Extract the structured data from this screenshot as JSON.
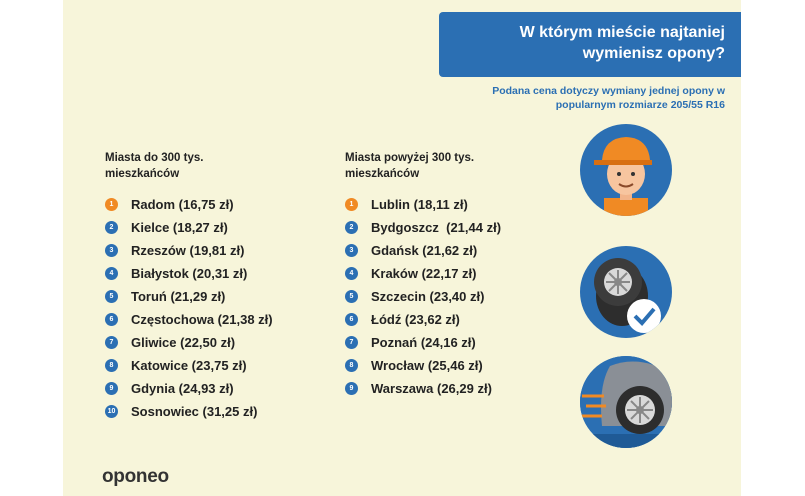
{
  "header": {
    "title": "W którym mieście najtaniej wymienisz opony?",
    "subtitle": "Podana cena dotyczy wymiany jednej opony w popularnym rozmiarze 205/55 R16"
  },
  "left_column": {
    "heading": "Miasta do 300 tys. mieszkańców",
    "items": [
      {
        "rank": "1",
        "text": "Radom (16,75 zł)"
      },
      {
        "rank": "2",
        "text": "Kielce (18,27 zł)"
      },
      {
        "rank": "3",
        "text": "Rzeszów (19,81 zł)"
      },
      {
        "rank": "4",
        "text": "Białystok (20,31 zł)"
      },
      {
        "rank": "5",
        "text": "Toruń (21,29 zł)"
      },
      {
        "rank": "6",
        "text": "Częstochowa (21,38 zł)"
      },
      {
        "rank": "7",
        "text": "Gliwice (22,50 zł)"
      },
      {
        "rank": "8",
        "text": "Katowice (23,75 zł)"
      },
      {
        "rank": "9",
        "text": "Gdynia (24,93 zł)"
      },
      {
        "rank": "10",
        "text": "Sosnowiec (31,25 zł)"
      }
    ]
  },
  "right_column": {
    "heading": "Miasta powyżej 300 tys. mieszkańców",
    "items": [
      {
        "rank": "1",
        "text": "Lublin (18,11 zł)"
      },
      {
        "rank": "2",
        "text": "Bydgoszcz  (21,44 zł)"
      },
      {
        "rank": "3",
        "text": "Gdańsk (21,62 zł)"
      },
      {
        "rank": "4",
        "text": "Kraków (22,17 zł)"
      },
      {
        "rank": "5",
        "text": "Szczecin (23,40 zł)"
      },
      {
        "rank": "6",
        "text": "Łódź (23,62 zł)"
      },
      {
        "rank": "7",
        "text": "Poznań (24,16 zł)"
      },
      {
        "rank": "8",
        "text": "Wrocław (25,46 zł)"
      },
      {
        "rank": "9",
        "text": "Warszawa (26,29 zł)"
      }
    ]
  },
  "icons": [
    "mechanic-icon",
    "tire-check-icon",
    "car-wheel-icon"
  ],
  "logo": "oponeo",
  "colors": {
    "background": "#f7f5da",
    "brand_blue": "#2b6fb3",
    "rank_first": "#f08a24",
    "text": "#222222"
  }
}
